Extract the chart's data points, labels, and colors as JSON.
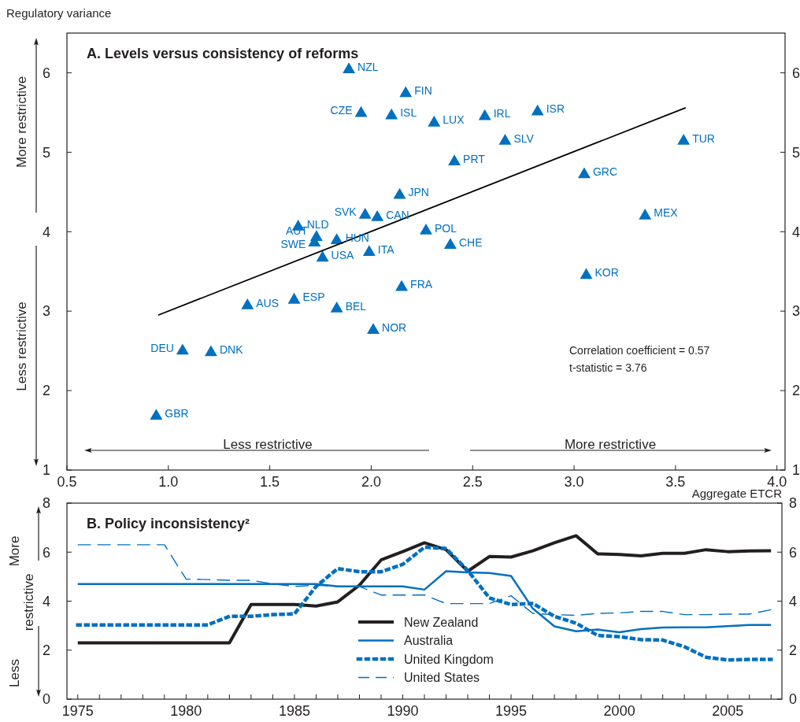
{
  "chart_data": [
    {
      "type": "scatter",
      "title": "A. Levels versus consistency of reforms",
      "xlabel": "Aggregate ETCR",
      "ylabel": "Regulatory variance",
      "xlim": [
        0.5,
        4.04
      ],
      "xticks": [
        {
          "value": 0.5,
          "label": "0.5"
        },
        {
          "value": 1,
          "label": "1.0"
        },
        {
          "value": 1.5,
          "label": "1.5"
        },
        {
          "value": 2,
          "label": "2.0"
        },
        {
          "value": 2.5,
          "label": "2.5"
        },
        {
          "value": 3,
          "label": "3.0"
        },
        {
          "value": 3.5,
          "label": "3.5"
        },
        {
          "value": 4,
          "label": "4.0"
        }
      ],
      "ylim": [
        1,
        6.5
      ],
      "yticks": [
        1,
        2,
        3,
        4,
        5,
        6
      ],
      "y2lim": [
        1,
        6.5
      ],
      "y2ticks": [
        1,
        2,
        3,
        4,
        5,
        6
      ],
      "grid": false,
      "legend": false,
      "annotations": [
        "More restrictive",
        "Less restrictive",
        "Less restrictive",
        "More restrictive",
        "Correlation coefficient = 0.57",
        "t-statistic = 3.76"
      ],
      "series": [
        {
          "type": "scatter",
          "color": "#0070c0",
          "marker": "triangle",
          "x": [
            1.89,
            2.17,
            1.95,
            2.1,
            2.31,
            2.56,
            2.82,
            2.66,
            3.54,
            2.41,
            3.05,
            2.14,
            1.97,
            2.03,
            3.35,
            1.64,
            2.27,
            1.73,
            1.83,
            1.72,
            2.39,
            1.99,
            1.76,
            3.06,
            2.15,
            1.62,
            1.39,
            1.83,
            2.01,
            1.07,
            1.21,
            0.94
          ],
          "values": [
            6.04,
            5.74,
            5.49,
            5.46,
            5.37,
            5.45,
            5.51,
            5.14,
            5.14,
            4.88,
            4.72,
            4.46,
            4.21,
            4.18,
            4.2,
            4.06,
            4.01,
            3.93,
            3.89,
            3.86,
            3.83,
            3.74,
            3.67,
            3.45,
            3.3,
            3.14,
            3.07,
            3.03,
            2.76,
            2.5,
            2.48,
            1.68
          ],
          "value_labels": [
            "NZL",
            "FIN",
            "CZE",
            "ISL",
            "LUX",
            "IRL",
            "ISR",
            "SLV",
            "TUR",
            "PRT",
            "GRC",
            "JPN",
            "SVK",
            "CAN",
            "MEX",
            "NLD",
            "POL",
            "AUT",
            "HUN",
            "SWE",
            "CHE",
            "ITA",
            "USA",
            "KOR",
            "FRA",
            "ESP",
            "AUS",
            "BEL",
            "NOR",
            "DEU",
            "DNK",
            "GBR"
          ]
        },
        {
          "type": "line",
          "color": "#000000",
          "x": [
            0.95,
            3.55
          ],
          "values": [
            2.95,
            5.56
          ],
          "line_style": "solid"
        }
      ]
    },
    {
      "type": "line",
      "title": "B. Policy inconsistency²",
      "xlim": [
        1974.5,
        2007.5
      ],
      "xticks": [
        1975,
        {
          "value": 1976,
          "label": null
        },
        {
          "value": 1977,
          "label": null
        },
        {
          "value": 1978,
          "label": null
        },
        {
          "value": 1979,
          "label": null
        },
        1980,
        {
          "value": 1981,
          "label": null
        },
        {
          "value": 1982,
          "label": null
        },
        {
          "value": 1983,
          "label": null
        },
        {
          "value": 1984,
          "label": null
        },
        1985,
        {
          "value": 1986,
          "label": null
        },
        {
          "value": 1987,
          "label": null
        },
        {
          "value": 1988,
          "label": null
        },
        {
          "value": 1989,
          "label": null
        },
        1990,
        {
          "value": 1991,
          "label": null
        },
        {
          "value": 1992,
          "label": null
        },
        {
          "value": 1993,
          "label": null
        },
        {
          "value": 1994,
          "label": null
        },
        1995,
        {
          "value": 1996,
          "label": null
        },
        {
          "value": 1997,
          "label": null
        },
        {
          "value": 1998,
          "label": null
        },
        {
          "value": 1999,
          "label": null
        },
        2000,
        {
          "value": 2001,
          "label": null
        },
        {
          "value": 2002,
          "label": null
        },
        {
          "value": 2003,
          "label": null
        },
        {
          "value": 2004,
          "label": null
        },
        2005,
        {
          "value": 2006,
          "label": null
        },
        {
          "value": 2007,
          "label": null
        }
      ],
      "ylim": [
        0,
        8
      ],
      "yticks": [
        0,
        2,
        4,
        6,
        8
      ],
      "y2lim": [
        0,
        8
      ],
      "y2ticks": [
        0,
        2,
        4,
        6,
        8
      ],
      "grid": false,
      "legend": "bottom",
      "annotations": [
        "More",
        "restrictive",
        "Less"
      ],
      "x": [
        1975,
        1976,
        1977,
        1978,
        1979,
        1980,
        1981,
        1982,
        1983,
        1984,
        1985,
        1986,
        1987,
        1988,
        1989,
        1990,
        1991,
        1992,
        1993,
        1994,
        1995,
        1996,
        1997,
        1998,
        1999,
        2000,
        2001,
        2002,
        2003,
        2004,
        2005,
        2006,
        2007
      ],
      "series": [
        {
          "name": "New Zealand",
          "color": "#231f20",
          "line_style": "solid",
          "values": [
            2.3,
            2.3,
            2.3,
            2.3,
            2.3,
            2.3,
            2.3,
            2.3,
            3.86,
            3.86,
            3.86,
            3.8,
            3.97,
            4.65,
            5.68,
            6.02,
            6.38,
            6.1,
            5.22,
            5.82,
            5.8,
            6.05,
            6.38,
            6.67,
            5.93,
            5.9,
            5.85,
            5.95,
            5.95,
            6.1,
            6.02,
            6.05,
            6.06
          ]
        },
        {
          "name": "Australia",
          "color": "#0070c0",
          "line_style": "solid",
          "values": [
            4.7,
            4.7,
            4.7,
            4.7,
            4.7,
            4.7,
            4.7,
            4.7,
            4.7,
            4.7,
            4.7,
            4.7,
            4.6,
            4.6,
            4.6,
            4.6,
            4.47,
            5.22,
            5.17,
            5.15,
            5.03,
            3.7,
            2.97,
            2.77,
            2.84,
            2.73,
            2.86,
            2.92,
            2.93,
            2.93,
            2.98,
            3.03,
            3.03
          ]
        },
        {
          "name": "United Kingdom",
          "color": "#0070c0",
          "line_style": "dotted",
          "values": [
            3.03,
            3.03,
            3.03,
            3.03,
            3.03,
            3.03,
            3.03,
            3.38,
            3.38,
            3.45,
            3.48,
            4.6,
            5.33,
            5.2,
            5.2,
            5.5,
            6.2,
            6.15,
            5.25,
            4.13,
            3.86,
            3.91,
            3.38,
            3.1,
            2.6,
            2.55,
            2.43,
            2.41,
            2.14,
            1.71,
            1.6,
            1.62,
            1.62
          ]
        },
        {
          "name": "United States",
          "color": "#0070c0",
          "line_style": "dashed",
          "values": [
            6.3,
            6.3,
            6.3,
            6.3,
            6.3,
            4.9,
            4.88,
            4.85,
            4.85,
            4.7,
            4.6,
            4.65,
            4.6,
            4.6,
            4.25,
            4.25,
            4.25,
            3.9,
            3.9,
            3.9,
            4.22,
            3.5,
            3.45,
            3.42,
            3.5,
            3.52,
            3.58,
            3.58,
            3.45,
            3.45,
            3.47,
            3.47,
            3.65
          ]
        }
      ]
    }
  ]
}
